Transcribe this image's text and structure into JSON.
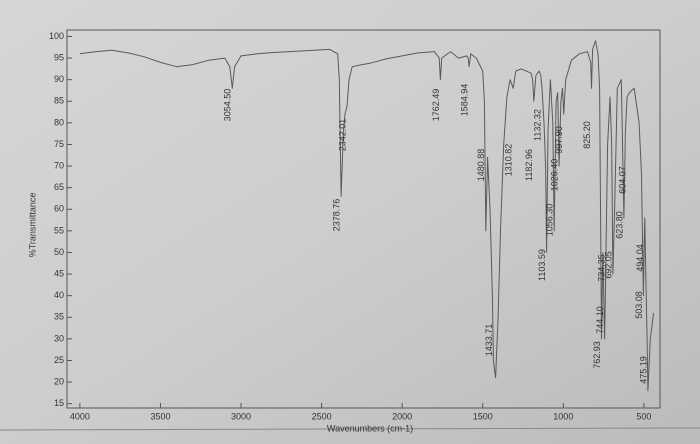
{
  "chart_data": {
    "type": "line",
    "xlabel": "Wavenumbers (cm-1)",
    "ylabel": "%Transmittance",
    "xlim": [
      4080,
      400
    ],
    "ylim": [
      14,
      101.5
    ],
    "xticks": [
      4000,
      3500,
      3000,
      2500,
      2000,
      1500,
      1000,
      500
    ],
    "yticks": [
      15,
      20,
      25,
      30,
      35,
      40,
      45,
      50,
      55,
      60,
      65,
      70,
      75,
      80,
      85,
      90,
      95,
      100
    ],
    "color": "#5a5a5a",
    "x": [
      4000,
      3900,
      3800,
      3700,
      3600,
      3500,
      3400,
      3300,
      3200,
      3100,
      3070,
      3054.5,
      3040,
      3000,
      2900,
      2800,
      2600,
      2450,
      2400,
      2390,
      2378.76,
      2365,
      2355,
      2342.01,
      2330,
      2310,
      2250,
      2200,
      2100,
      2000,
      1900,
      1800,
      1770,
      1762.49,
      1755,
      1700,
      1650,
      1600,
      1590,
      1584.94,
      1575,
      1540,
      1500,
      1490,
      1480.88,
      1470,
      1455,
      1440,
      1433.71,
      1420,
      1405,
      1390,
      1370,
      1350,
      1330,
      1310.82,
      1295,
      1260,
      1200,
      1190,
      1182.96,
      1170,
      1150,
      1140,
      1132.32,
      1120,
      1110,
      1103.59,
      1095,
      1080,
      1065,
      1056.3,
      1045,
      1035,
      1026.4,
      1015,
      1005,
      997.9,
      985,
      950,
      900,
      850,
      830,
      825.2,
      818,
      800,
      785,
      775,
      762.93,
      755,
      744.1,
      738,
      734.35,
      725,
      710,
      700,
      692.05,
      682,
      665,
      640,
      623.8,
      615,
      604.07,
      590,
      560,
      530,
      515,
      503.08,
      498,
      494.04,
      488,
      480,
      475.19,
      460,
      440
    ],
    "values": [
      96,
      96.5,
      96.8,
      96.2,
      95.3,
      94,
      93,
      93.5,
      94.5,
      95,
      93,
      88,
      93,
      95.5,
      96,
      96.3,
      96.7,
      97,
      96,
      90,
      63,
      78,
      82,
      84,
      90,
      93,
      93.5,
      93.8,
      94.8,
      95.5,
      96.2,
      96.5,
      95,
      90,
      95,
      96.5,
      95,
      95.5,
      95,
      93,
      96,
      95,
      92,
      85,
      55,
      72,
      60,
      40,
      25,
      21,
      35,
      55,
      75,
      86,
      90,
      88,
      92,
      92.5,
      91.5,
      90,
      85,
      91,
      92,
      91,
      88,
      80,
      70,
      50,
      78,
      90,
      80,
      55,
      85,
      87,
      70,
      85,
      88,
      82,
      90,
      94.5,
      96,
      96.5,
      94,
      88,
      97,
      99,
      96,
      88,
      30,
      50,
      30,
      42,
      52,
      75,
      86,
      75,
      45,
      60,
      88,
      90,
      58,
      78,
      86,
      87,
      88,
      80,
      68,
      40,
      52,
      58,
      45,
      30,
      18,
      30,
      36
    ],
    "peaks": [
      {
        "value": 3054.5,
        "label": "3054.50"
      },
      {
        "value": 2378.76,
        "label": "2378.76"
      },
      {
        "value": 2342.01,
        "label": "2342.01"
      },
      {
        "value": 1762.49,
        "label": "1762.49"
      },
      {
        "value": 1584.94,
        "label": "1584.94"
      },
      {
        "value": 1480.88,
        "label": "1480.88"
      },
      {
        "value": 1433.71,
        "label": "1433.71"
      },
      {
        "value": 1310.82,
        "label": "1310.82"
      },
      {
        "value": 1182.96,
        "label": "1182.96"
      },
      {
        "value": 1132.32,
        "label": "1132.32"
      },
      {
        "value": 1103.59,
        "label": "1103.59"
      },
      {
        "value": 1056.3,
        "label": "1056.30"
      },
      {
        "value": 1026.4,
        "label": "1026.40"
      },
      {
        "value": 997.9,
        "label": "997.90"
      },
      {
        "value": 825.2,
        "label": "825.20"
      },
      {
        "value": 762.93,
        "label": "762.93"
      },
      {
        "value": 744.1,
        "label": "744.10"
      },
      {
        "value": 734.35,
        "label": "734.35"
      },
      {
        "value": 692.05,
        "label": "692.05"
      },
      {
        "value": 623.8,
        "label": "623.80"
      },
      {
        "value": 604.07,
        "label": "604.07"
      },
      {
        "value": 503.08,
        "label": "503.08"
      },
      {
        "value": 494.04,
        "label": "494.04"
      },
      {
        "value": 475.19,
        "label": "475.19"
      }
    ]
  }
}
